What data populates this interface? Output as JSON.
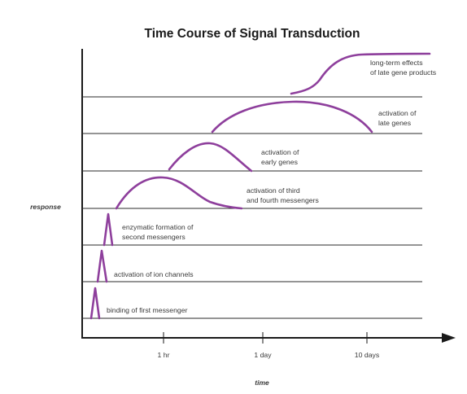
{
  "title": "Time Course of Signal Transduction",
  "y_axis_label": "response",
  "x_axis_label": "time",
  "x_ticks": [
    "1 hr",
    "1 day",
    "10 days"
  ],
  "curve_color": "#8e3f9c",
  "events": [
    {
      "id": "binding",
      "label_lines": [
        "binding of first messenger"
      ]
    },
    {
      "id": "ion-channels",
      "label_lines": [
        "activation of ion channels"
      ]
    },
    {
      "id": "second-messengers",
      "label_lines": [
        "enzymatic formation of",
        "second messengers"
      ]
    },
    {
      "id": "third-fourth-messengers",
      "label_lines": [
        "activation of third",
        "and fourth messengers"
      ]
    },
    {
      "id": "early-genes",
      "label_lines": [
        "activation of",
        "early genes"
      ]
    },
    {
      "id": "late-genes",
      "label_lines": [
        "activation of",
        "late genes"
      ]
    },
    {
      "id": "late-gene-products",
      "label_lines": [
        "long-term effects",
        "of late gene products"
      ]
    }
  ]
}
